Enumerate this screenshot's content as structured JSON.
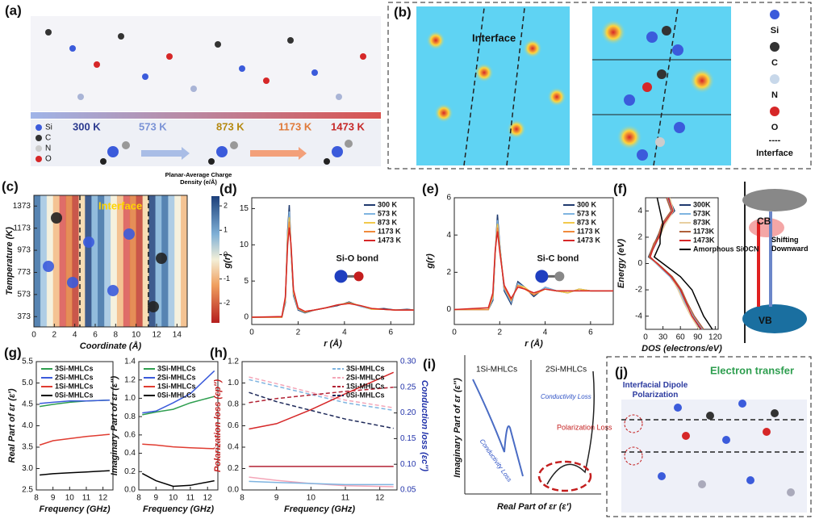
{
  "panel_a": {
    "label": "(a)",
    "legend": [
      "Si",
      "C",
      "N",
      "O"
    ],
    "temperatures": [
      "300 K",
      "573 K",
      "873 K",
      "1173 K",
      "1473 K"
    ]
  },
  "panel_b": {
    "label": "(b)",
    "annotation": "Interface",
    "legend": [
      "Si",
      "C",
      "N",
      "O"
    ],
    "interface_symbol": "----",
    "interface_label": "Interface"
  },
  "panel_f_scheme": {
    "cb": "CB",
    "vb": "VB",
    "note": "Shifting Downward"
  },
  "panel_i": {
    "label": "(i)",
    "left_title": "1Si-MHLCs",
    "right_title": "2Si-MHLCs",
    "left_note": "Conductivity Loss",
    "right_note_conductivity": "Conductivity Loss",
    "right_note_polarization": "Polarization Loss",
    "ylabel": "Imaginary Part of εr (ε″)",
    "xlabel": "Real Part of εr (ε′)"
  },
  "panel_j": {
    "label": "(j)",
    "title": "Electron transfer",
    "note": "Interfacial Dipole Polarization"
  },
  "chart_data": [
    {
      "type": "heatmap",
      "label": "(c)",
      "title": "Planar-Average Charge Density (e/Å)",
      "annotation": "Interface",
      "xlabel": "Coordinate (Å)",
      "ylabel": "Temperature (K)",
      "xlim": [
        0,
        15
      ],
      "xticks": [
        0,
        2,
        4,
        6,
        8,
        10,
        12,
        14
      ],
      "ylim": [
        280,
        1470
      ],
      "yticks": [
        373,
        573,
        773,
        973,
        1173,
        1373
      ],
      "interfaces": [
        4.5,
        11.2
      ],
      "clim": [
        -2.8,
        2.4
      ],
      "cticks": [
        2,
        1,
        0,
        -1,
        -2
      ]
    },
    {
      "type": "line",
      "label": "(d)",
      "annotation": "Si-O bond",
      "xlabel": "r (Å)",
      "ylabel": "g(r)",
      "xlim": [
        0,
        7
      ],
      "xticks": [
        0,
        2,
        4,
        6
      ],
      "ylim": [
        -1,
        16.5
      ],
      "yticks": [
        0,
        5,
        10,
        15
      ],
      "legend": "upper right",
      "x": [
        0,
        1.3,
        1.45,
        1.55,
        1.62,
        1.7,
        1.8,
        2.0,
        2.3,
        2.7,
        3.2,
        3.7,
        4.2,
        4.7,
        5.2,
        5.7,
        6.2,
        6.7,
        7
      ],
      "series": [
        {
          "name": "300 K",
          "color": "#1f3a6e",
          "values": [
            0,
            0,
            2,
            12,
            15.5,
            9,
            3,
            1,
            0.6,
            1,
            1.3,
            1.6,
            2.1,
            1.5,
            1.1,
            1.2,
            1,
            1.1,
            1
          ]
        },
        {
          "name": "573 K",
          "color": "#7fb4e0",
          "values": [
            0,
            0,
            2.2,
            11.5,
            14.6,
            9.2,
            3.2,
            1.1,
            0.7,
            1,
            1.3,
            1.7,
            2,
            1.5,
            1.1,
            1.1,
            1,
            1,
            1
          ]
        },
        {
          "name": "873 K",
          "color": "#f2c94c",
          "values": [
            0,
            0,
            2.4,
            11,
            13.8,
            9.4,
            3.4,
            1.2,
            0.7,
            1,
            1.3,
            1.7,
            2,
            1.6,
            1.1,
            1.1,
            1,
            1,
            1
          ]
        },
        {
          "name": "1173 K",
          "color": "#f08a3c",
          "values": [
            0,
            0,
            2.6,
            10.5,
            13.2,
            9.6,
            3.6,
            1.2,
            0.8,
            1,
            1.3,
            1.7,
            1.9,
            1.6,
            1.2,
            1.1,
            1,
            1,
            1
          ]
        },
        {
          "name": "1473 K",
          "color": "#d62728",
          "values": [
            0,
            0.1,
            2.8,
            10,
            12.4,
            9.8,
            3.8,
            1.3,
            0.8,
            1,
            1.3,
            1.7,
            1.9,
            1.6,
            1.2,
            1.1,
            1,
            1,
            1
          ]
        }
      ]
    },
    {
      "type": "line",
      "label": "(e)",
      "annotation": "Si-C bond",
      "xlabel": "r (Å)",
      "ylabel": "g(r)",
      "xlim": [
        0,
        7
      ],
      "xticks": [
        0,
        2,
        4,
        6
      ],
      "ylim": [
        -0.8,
        6
      ],
      "yticks": [
        0,
        2,
        4,
        6
      ],
      "legend": "upper right",
      "x": [
        0,
        1.5,
        1.7,
        1.8,
        1.9,
        2.0,
        2.2,
        2.5,
        2.8,
        3.1,
        3.5,
        4,
        4.5,
        5,
        5.5,
        6,
        6.5,
        7
      ],
      "series": [
        {
          "name": "300 K",
          "color": "#1f3a6e",
          "values": [
            0,
            0,
            0.5,
            3,
            5.1,
            3.5,
            1,
            0.3,
            1.5,
            1.2,
            0.7,
            1.2,
            1,
            0.9,
            1.1,
            1,
            1,
            1
          ]
        },
        {
          "name": "573 K",
          "color": "#7fb4e0",
          "values": [
            0,
            0,
            0.6,
            3,
            4.8,
            3.4,
            1.1,
            0.4,
            1.4,
            1.2,
            0.8,
            1.2,
            1,
            0.9,
            1.1,
            1,
            1,
            1
          ]
        },
        {
          "name": "873 K",
          "color": "#f2c94c",
          "values": [
            0,
            0,
            0.7,
            3.1,
            4.6,
            3.3,
            1.2,
            0.5,
            1.3,
            1.2,
            0.8,
            1.1,
            1,
            0.9,
            1.1,
            1,
            1,
            1
          ]
        },
        {
          "name": "1173 K",
          "color": "#f08a3c",
          "values": [
            0,
            0,
            0.8,
            3.1,
            4.4,
            3.2,
            1.2,
            0.5,
            1.3,
            1.1,
            0.8,
            1.1,
            1,
            1,
            1,
            1,
            1,
            1
          ]
        },
        {
          "name": "1473 K",
          "color": "#d62728",
          "values": [
            0,
            0.1,
            0.9,
            3.2,
            4.2,
            3.1,
            1.3,
            0.6,
            1.2,
            1.1,
            0.9,
            1.1,
            1,
            1,
            1,
            1,
            1,
            1
          ]
        }
      ]
    },
    {
      "type": "line",
      "orientation": "horizontal",
      "label": "(f)",
      "xlabel": "DOS (electrons/eV)",
      "ylabel": "Energy (eV)",
      "xlim": [
        0,
        125
      ],
      "xticks": [
        0,
        30,
        60,
        90,
        120
      ],
      "ylim": [
        -5,
        5
      ],
      "yticks": [
        -4,
        -2,
        0,
        2,
        4
      ],
      "legend": "upper right",
      "y": [
        -5,
        -4,
        -3,
        -2,
        -1,
        0,
        0.5,
        1,
        1.5,
        2,
        3,
        4,
        5
      ],
      "series": [
        {
          "name": "300K",
          "color": "#1f3a6e",
          "values": [
            95,
            80,
            70,
            60,
            45,
            20,
            5,
            10,
            15,
            20,
            30,
            50,
            40
          ]
        },
        {
          "name": "573K",
          "color": "#7fb4e0",
          "values": [
            98,
            82,
            68,
            58,
            42,
            18,
            6,
            12,
            18,
            22,
            32,
            45,
            38
          ]
        },
        {
          "name": "873K",
          "color": "#e8cfa0",
          "values": [
            92,
            78,
            66,
            56,
            44,
            19,
            7,
            11,
            16,
            24,
            34,
            48,
            42
          ]
        },
        {
          "name": "1173K",
          "color": "#b0603a",
          "values": [
            100,
            84,
            72,
            62,
            46,
            21,
            6,
            10,
            14,
            21,
            28,
            44,
            36
          ]
        },
        {
          "name": "1473K",
          "color": "#d62728",
          "values": [
            96,
            80,
            70,
            60,
            44,
            20,
            8,
            12,
            17,
            23,
            31,
            47,
            39
          ]
        },
        {
          "name": "Amorphous SiOCN",
          "color": "#000000",
          "values": [
            115,
            100,
            90,
            80,
            60,
            30,
            15,
            20,
            25,
            25,
            30,
            25,
            20
          ]
        }
      ]
    },
    {
      "type": "line",
      "label": "(g)",
      "xlabel": "Frequency (GHz)",
      "ylabel": "Real Part of εr (ε′)",
      "xlim": [
        8,
        12.6
      ],
      "xticks": [
        8,
        9,
        10,
        11,
        12
      ],
      "ylim": [
        2.5,
        5.5
      ],
      "yticks": [
        2.5,
        {
          "value": 3,
          "label": "3.0"
        },
        3.5,
        {
          "value": 4,
          "label": "4.0"
        },
        4.5,
        {
          "value": 5,
          "label": "5.0"
        },
        5.5
      ],
      "legend": "upper left",
      "x": [
        8.2,
        9,
        10,
        11,
        12.4
      ],
      "series": [
        {
          "name": "3Si-MHLCs",
          "color": "#2e9e4f",
          "values": [
            4.45,
            4.5,
            4.55,
            4.58,
            4.6
          ]
        },
        {
          "name": "2Si-MHLCs",
          "color": "#3b5bdb",
          "values": [
            4.52,
            4.55,
            4.58,
            4.58,
            4.6
          ]
        },
        {
          "name": "1Si-MHLCs",
          "color": "#e03c31",
          "values": [
            3.55,
            3.65,
            3.7,
            3.75,
            3.8
          ]
        },
        {
          "name": "0Si-MHLCs",
          "color": "#000000",
          "values": [
            2.85,
            2.88,
            2.9,
            2.92,
            2.95
          ]
        }
      ]
    },
    {
      "type": "line",
      "xlabel": "Frequency (GHz)",
      "ylabel": "Imaginary Part of εr (ε″)",
      "xlim": [
        8,
        12.6
      ],
      "xticks": [
        8,
        9,
        10,
        11,
        12
      ],
      "ylim": [
        0,
        1.4
      ],
      "yticks": [
        {
          "value": 0,
          "label": "0.0"
        },
        0.2,
        0.4,
        0.6,
        0.8,
        {
          "value": 1,
          "label": "1.0"
        },
        1.2,
        1.4
      ],
      "legend": "upper left",
      "x": [
        8.2,
        9,
        10,
        11,
        12.4
      ],
      "series": [
        {
          "name": "3Si-MHLCs",
          "color": "#2e9e4f",
          "values": [
            0.82,
            0.85,
            0.88,
            0.95,
            1.02
          ]
        },
        {
          "name": "2Si-MHLCs",
          "color": "#3b5bdb",
          "values": [
            0.84,
            0.86,
            0.95,
            1.05,
            1.3
          ]
        },
        {
          "name": "1Si-MHLCs",
          "color": "#e03c31",
          "values": [
            0.5,
            0.49,
            0.47,
            0.46,
            0.45
          ]
        },
        {
          "name": "0Si-MHLCs",
          "color": "#000000",
          "values": [
            0.18,
            0.1,
            0.04,
            0.05,
            0.1
          ]
        }
      ]
    },
    {
      "type": "line",
      "label": "(h)",
      "xlabel": "Frequency (GHz)",
      "ylabel": "Polarization loss (εp″)",
      "y2label": "Conduction loss (εc″)",
      "xlim": [
        8,
        12.5
      ],
      "xticks": [
        8,
        9,
        10,
        11,
        12
      ],
      "ylim": [
        0,
        1.2
      ],
      "yticks": [
        {
          "value": 0,
          "label": "0.0"
        },
        0.2,
        0.4,
        0.6,
        0.8,
        {
          "value": 1,
          "label": "1.0"
        },
        1.2
      ],
      "y2lim": [
        0.05,
        0.3
      ],
      "y2ticks": [
        0.05,
        {
          "value": 0.1,
          "label": "0.10"
        },
        0.15,
        {
          "value": 0.2,
          "label": "0.20"
        },
        0.25,
        {
          "value": 0.3,
          "label": "0.30"
        }
      ],
      "legend": "upper right",
      "x": [
        8.2,
        9,
        10,
        11,
        12.4
      ],
      "series": [
        {
          "name": "3Si-MHLCs",
          "color": "#7fb4e0",
          "axis": "y2",
          "dashed": true,
          "values": [
            0.265,
            0.252,
            0.236,
            0.22,
            0.205
          ]
        },
        {
          "name": "2Si-MHLCs",
          "color": "#f4a6b8",
          "axis": "y2",
          "dashed": true,
          "values": [
            0.27,
            0.257,
            0.24,
            0.225,
            0.21
          ]
        },
        {
          "name": "1Si-MHLCs",
          "color": "#b22234",
          "axis": "y2",
          "dashed": true,
          "values": [
            0.22,
            0.228,
            0.235,
            0.242,
            0.25
          ]
        },
        {
          "name": "0Si-MHLCs",
          "color": "#1f2a5a",
          "axis": "y2",
          "dashed": true,
          "values": [
            0.24,
            0.222,
            0.205,
            0.188,
            0.17
          ]
        },
        {
          "color": "#f4a6b8",
          "values": [
            0.12,
            0.09,
            0.06,
            0.04,
            0.03
          ]
        },
        {
          "color": "#7fb4e0",
          "values": [
            0.08,
            0.07,
            0.06,
            0.05,
            0.05
          ]
        },
        {
          "color": "#d62728",
          "values": [
            0.57,
            0.62,
            0.75,
            0.9,
            1.1
          ]
        },
        {
          "color": "#b22234",
          "values": [
            0.22,
            0.22,
            0.22,
            0.22,
            0.22
          ]
        }
      ]
    }
  ]
}
